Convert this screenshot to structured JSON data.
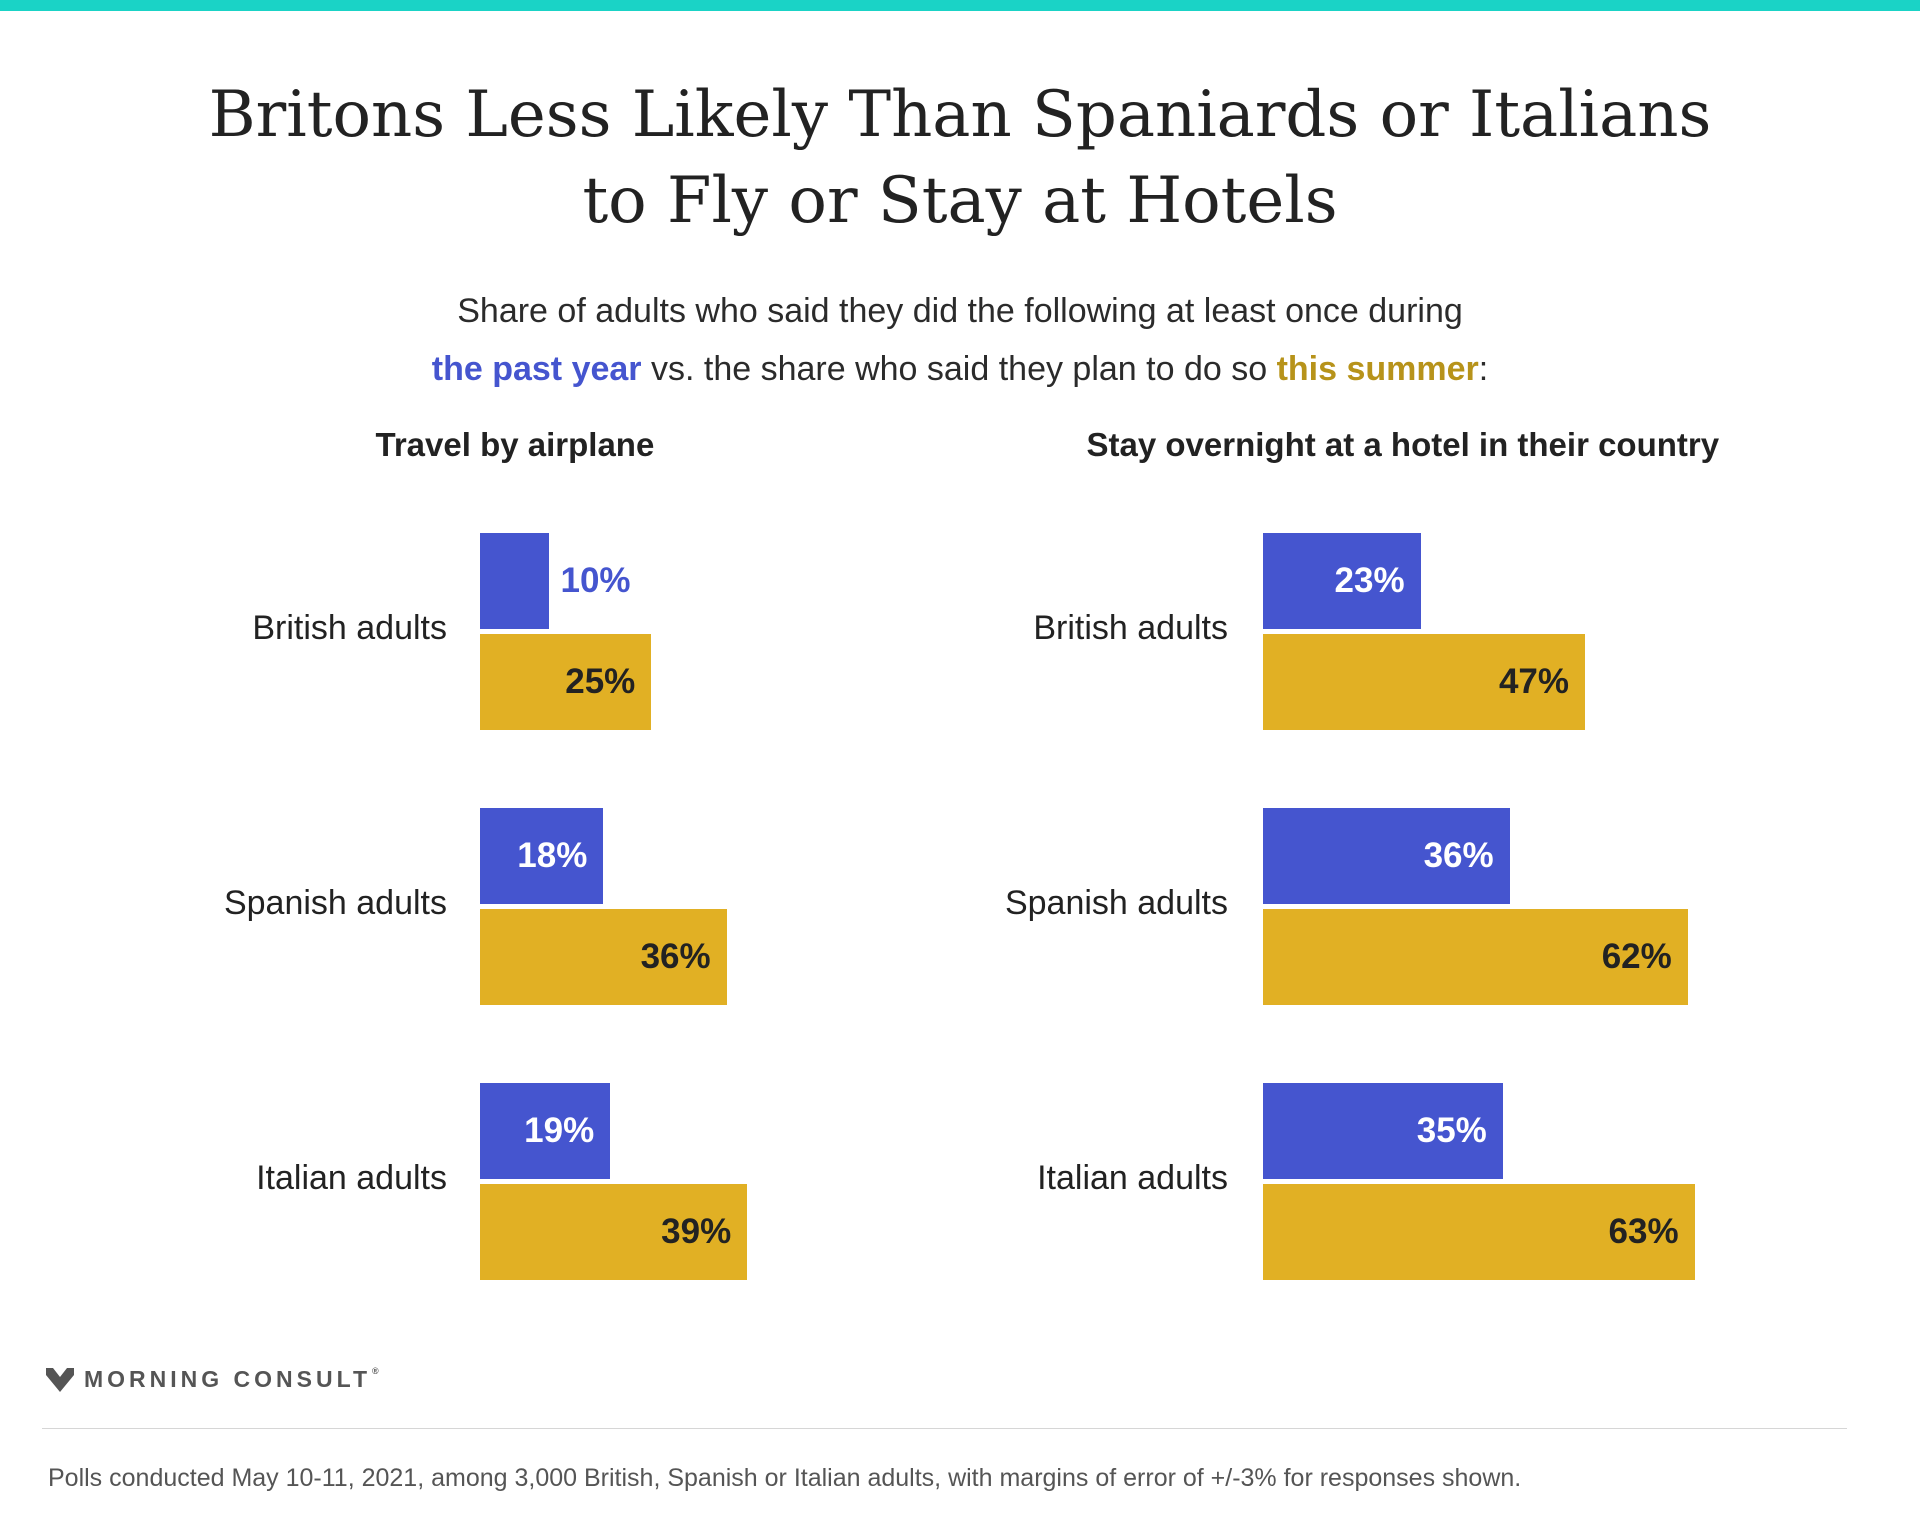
{
  "title_lines": [
    "Britons Less Likely Than Spaniards or Italians",
    "to Fly or Stay at Hotels"
  ],
  "subtitle": {
    "line1": "Share of adults who said they did the following at least once during",
    "line2_blue": "the past year",
    "line2_mid": " vs. the share who said they plan to do so ",
    "line2_gold": "this summer",
    "line2_end": ":"
  },
  "colors": {
    "past_year": "#4555cf",
    "this_summer": "#e1b024",
    "top_stripe": "#1ad3c6"
  },
  "chart_data": [
    {
      "type": "bar",
      "orientation": "horizontal",
      "title": "Travel by airplane",
      "categories": [
        "British adults",
        "Spanish adults",
        "Italian adults"
      ],
      "series": [
        {
          "name": "the past year",
          "values": [
            10,
            18,
            19
          ]
        },
        {
          "name": "this summer",
          "values": [
            25,
            36,
            39
          ]
        }
      ],
      "value_labels": [
        [
          "10%",
          "18%",
          "19%"
        ],
        [
          "25%",
          "36%",
          "39%"
        ]
      ],
      "grid": false
    },
    {
      "type": "bar",
      "orientation": "horizontal",
      "title": "Stay overnight at a hotel in their country",
      "categories": [
        "British adults",
        "Spanish adults",
        "Italian adults"
      ],
      "series": [
        {
          "name": "the past year",
          "values": [
            23,
            36,
            35
          ]
        },
        {
          "name": "this summer",
          "values": [
            47,
            62,
            63
          ]
        }
      ],
      "value_labels": [
        [
          "23%",
          "36%",
          "35%"
        ],
        [
          "47%",
          "62%",
          "63%"
        ]
      ],
      "grid": false
    }
  ],
  "brand": {
    "name": "MORNING CONSULT",
    "mark": "®",
    "icon": "morning-consult-logo-icon"
  },
  "footnote": "Polls conducted May 10-11, 2021, among 3,000 British, Spanish or Italian adults, with margins of error of +/-3% for responses shown."
}
